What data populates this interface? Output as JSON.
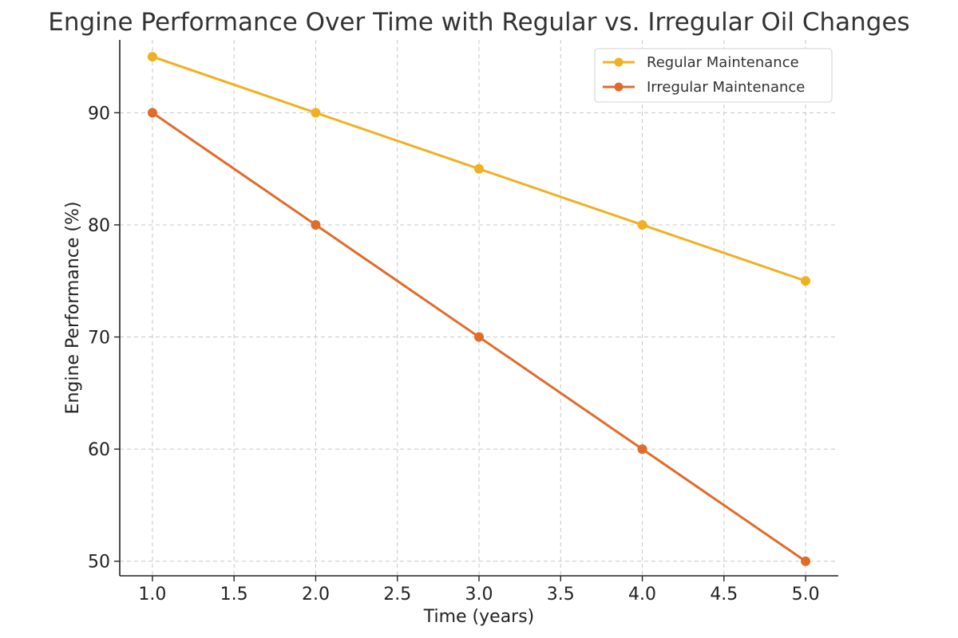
{
  "chart_data": {
    "type": "line",
    "title": "Engine Performance Over Time with Regular vs. Irregular Oil Changes",
    "xlabel": "Time (years)",
    "ylabel": "Engine Performance (%)",
    "xlim": [
      0.8,
      5.2
    ],
    "ylim": [
      48.7,
      96.5
    ],
    "xticks": [
      "1.0",
      "1.5",
      "2.0",
      "2.5",
      "3.0",
      "3.5",
      "4.0",
      "4.5",
      "5.0"
    ],
    "yticks": [
      "50",
      "60",
      "70",
      "80",
      "90"
    ],
    "grid": true,
    "legend_position": "top-right",
    "x": [
      1,
      2,
      3,
      4,
      5
    ],
    "series": [
      {
        "name": "Regular Maintenance",
        "color": "#f0b020",
        "values": [
          95,
          90,
          85,
          80,
          75
        ]
      },
      {
        "name": "Irregular Maintenance",
        "color": "#e06c2a",
        "values": [
          90,
          80,
          70,
          60,
          50
        ]
      }
    ]
  }
}
